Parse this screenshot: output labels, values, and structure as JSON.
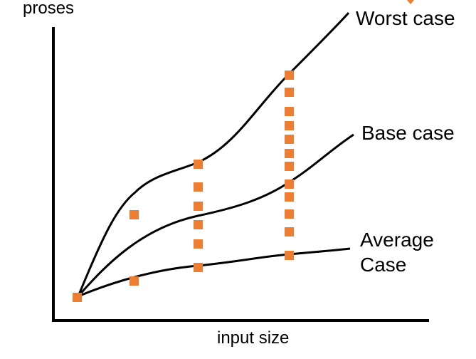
{
  "labels": {
    "y_axis": "proses",
    "x_axis": "input size"
  },
  "curves": [
    {
      "key": "worst",
      "label": "Worst case"
    },
    {
      "key": "base",
      "label": "Base case"
    },
    {
      "key": "average",
      "label_line1": "Average",
      "label_line2": "Case"
    }
  ],
  "colors": {
    "curve": "#000000",
    "axis": "#000000",
    "marker": "#ED7D31"
  }
}
